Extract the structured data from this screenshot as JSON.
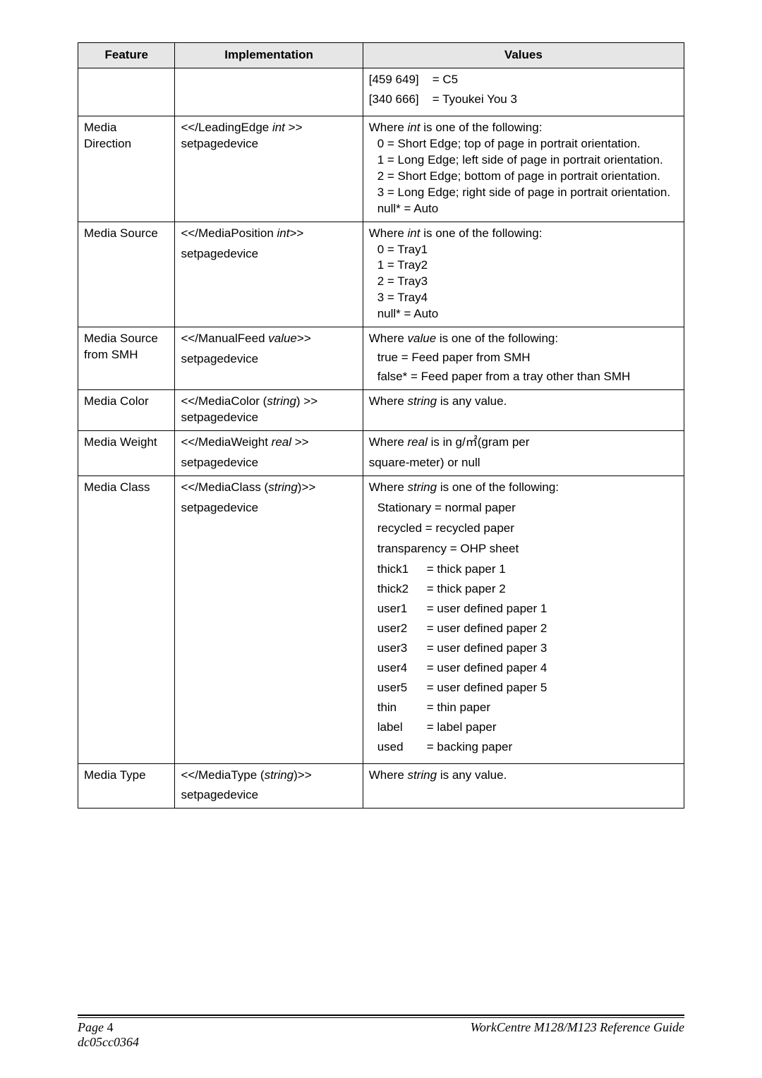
{
  "header": {
    "feature": "Feature",
    "implementation": "Implementation",
    "values": "Values"
  },
  "row0": {
    "v1": "[459 649]",
    "v1e": "= C5",
    "v2": "[340 666]",
    "v2e": "= Tyoukei You 3"
  },
  "row1": {
    "feature1": "Media",
    "feature2": "Direction",
    "impl1": "<</LeadingEdge ",
    "impl1it": "int ",
    "impl1c": ">>",
    "impl2": "setpagedevice",
    "vlead": "Where ",
    "vleadit": "int",
    "vleadc": " is one of the following:",
    "l0": "0 = Short Edge; top of page in portrait orientation.",
    "l1": "1 = Long Edge; left side of page in portrait orientation.",
    "l2": "2 = Short Edge; bottom of page in portrait orientation.",
    "l3": "3 = Long Edge; right side of page in portrait orientation.",
    "l4": "null* = Auto"
  },
  "row2": {
    "feature": "Media Source",
    "impl1": "<</MediaPosition ",
    "impl1it": "int",
    "impl1c": ">>",
    "impl2": "setpagedevice",
    "vlead": "Where ",
    "vleadit": "int",
    "vleadc": " is one of the following:",
    "l0": "0 = Tray1",
    "l1": "1 = Tray2",
    "l2": "2 = Tray3",
    "l3": "3 = Tray4",
    "l4": "null* = Auto"
  },
  "row3": {
    "feature1": "Media  Source",
    "feature2": "from SMH",
    "impl1": "<</ManualFeed ",
    "impl1it": "value",
    "impl1c": ">>",
    "impl2": "setpagedevice",
    "vlead": "Where ",
    "vleadit": "value",
    "vleadc": " is one of the following:",
    "l0": "true = Feed paper from SMH",
    "l1": "false* = Feed paper from a tray other than SMH"
  },
  "row4": {
    "feature": "Media Color",
    "impl1": "<</MediaColor (",
    "impl1it": "string",
    "impl1c": ") >>",
    "impl2": "setpagedevice",
    "vlead": "Where ",
    "vleadit": "string",
    "vleadc": " is any value."
  },
  "row5": {
    "feature": "Media Weight",
    "impl1": "<</MediaWeight ",
    "impl1it": "real ",
    "impl1c": ">>",
    "impl2": "setpagedevice",
    "vlead": "Where ",
    "vleadit": "real",
    "vleadc": " is in g/㎡(gram per",
    "vleadc2": "square-meter) or null"
  },
  "row6": {
    "feature": "Media Class",
    "impl1": "<</MediaClass (",
    "impl1it": "string",
    "impl1c": ")>>",
    "impl2": "setpagedevice",
    "vlead": "Where ",
    "vleadit": "string",
    "vleadc": " is one of the following:",
    "m0k": "Stationary = normal paper",
    "m1k": "recycled = recycled paper",
    "m2k": "transparency = OHP sheet",
    "m3k": "thick1",
    "m3v": "= thick paper 1",
    "m4k": "thick2",
    "m4v": "= thick paper 2",
    "m5k": "user1",
    "m5v": "= user defined paper 1",
    "m6k": "user2",
    "m6v": "= user defined paper 2",
    "m7k": "user3",
    "m7v": "= user defined paper 3",
    "m8k": "user4",
    "m8v": "= user defined paper 4",
    "m9k": "user5",
    "m9v": "= user defined paper 5",
    "m10k": "thin",
    "m10v": "= thin paper",
    "m11k": "label",
    "m11v": "= label paper",
    "m12k": "used",
    "m12v": "= backing paper"
  },
  "row7": {
    "feature": "Media Type",
    "impl1": "<</MediaType (",
    "impl1it": "string",
    "impl1c": ")>>",
    "impl2": "setpagedevice",
    "vlead": "Where ",
    "vleadit": "string",
    "vleadc": " is any value."
  },
  "footer": {
    "pageword": "Page ",
    "pagenum": "4",
    "docid": "dc05cc0364",
    "guide": "WorkCentre M128/M123 Reference Guide"
  }
}
